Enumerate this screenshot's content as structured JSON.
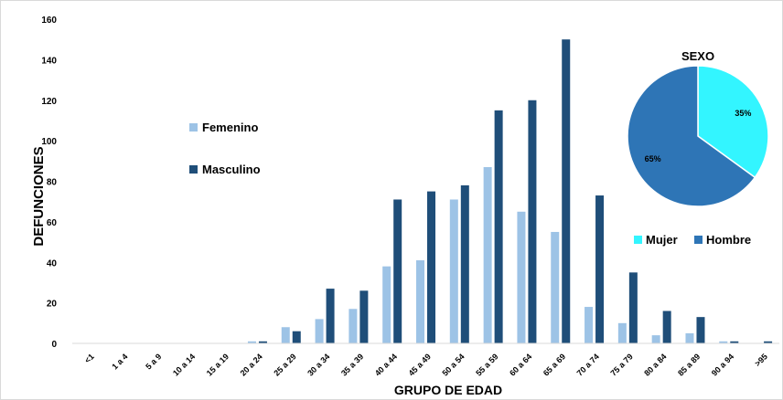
{
  "chart_data": [
    {
      "type": "bar",
      "xlabel": "GRUPO DE EDAD",
      "ylabel": "DEFUNCIONES",
      "ylim": [
        0,
        160
      ],
      "yticks": [
        0,
        20,
        40,
        60,
        80,
        100,
        120,
        140,
        160
      ],
      "grid": false,
      "legend_position": "left-middle",
      "categories": [
        "<1",
        "1 a 4",
        "5 a 9",
        "10 a 14",
        "15 a 19",
        "20 a 24",
        "25 a 29",
        "30 a 34",
        "35 a 39",
        "40 a 44",
        "45 a 49",
        "50 a 54",
        "55 a 59",
        "60 a 64",
        "65 a 69",
        "70 a 74",
        "75 a 79",
        "80 a 84",
        "85 a 89",
        "90 a 94",
        ">95"
      ],
      "series": [
        {
          "name": "Femenino",
          "color": "#9dc3e6",
          "values": [
            0,
            0,
            0,
            0,
            0,
            1,
            8,
            12,
            17,
            38,
            41,
            71,
            87,
            65,
            55,
            18,
            10,
            4,
            5,
            1,
            0
          ]
        },
        {
          "name": "Masculino",
          "color": "#1f4e79",
          "values": [
            0,
            0,
            0,
            0,
            0,
            1,
            6,
            27,
            26,
            71,
            75,
            78,
            115,
            120,
            150,
            73,
            35,
            16,
            13,
            1,
            1
          ]
        }
      ]
    },
    {
      "type": "pie",
      "title": "SEXO",
      "legend_position": "bottom",
      "slices": [
        {
          "label": "Mujer",
          "value": 35,
          "text": "35%",
          "color": "#33f5ff"
        },
        {
          "label": "Hombre",
          "value": 65,
          "text": "65%",
          "color": "#2e75b6"
        }
      ]
    }
  ]
}
